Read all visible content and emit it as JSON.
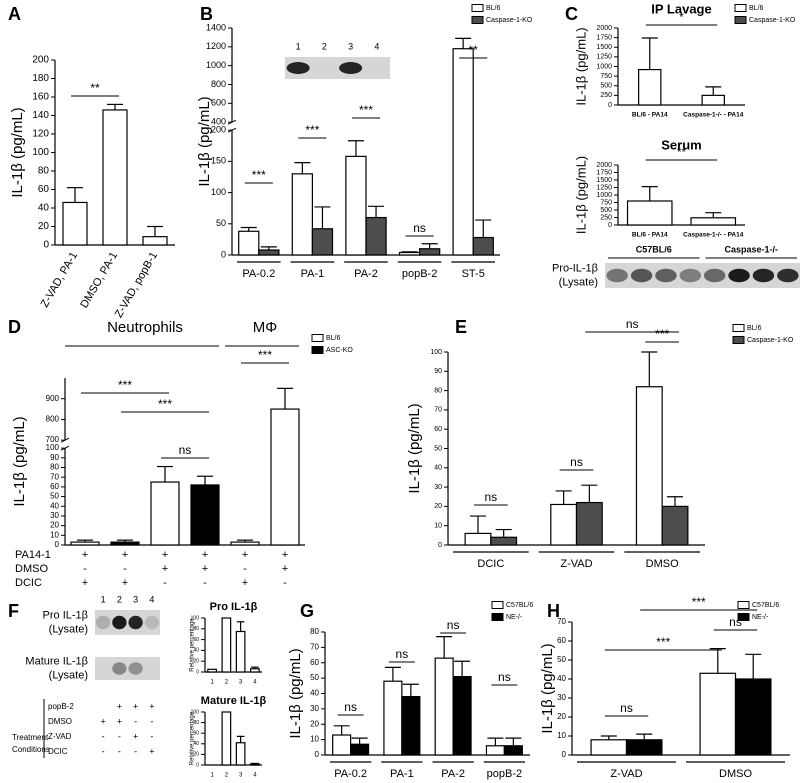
{
  "chart_data": [
    {
      "type": "bar",
      "panel": "A",
      "ylabel": "IL-1β (pg/mL)",
      "categories": [
        "Z-VAD, PA-1",
        "DMSO, PA-1",
        "Z-VAD, popB-1"
      ],
      "values": [
        46,
        146,
        9
      ],
      "errors": [
        16,
        6,
        11
      ],
      "color": "#ffffff",
      "ylim": [
        0,
        200
      ],
      "yticks": [
        0,
        20,
        40,
        60,
        80,
        100,
        120,
        140,
        160,
        180,
        200
      ],
      "annotations": [
        "**"
      ]
    },
    {
      "type": "bar",
      "panel": "B",
      "ylabel": "IL-1β (pg/mL)",
      "categories": [
        "PA-0.2",
        "PA-1",
        "PA-2",
        "popB-2",
        "ST-5"
      ],
      "series": [
        {
          "name": "BL/6",
          "color": "#ffffff",
          "values": [
            38,
            130,
            158,
            4,
            1180
          ],
          "errors": [
            6,
            18,
            25,
            1,
            110
          ]
        },
        {
          "name": "Caspase-1-KO",
          "color": "#4d4d4d",
          "values": [
            8,
            42,
            60,
            10,
            28
          ],
          "errors": [
            5,
            35,
            18,
            8,
            28
          ]
        }
      ],
      "ylim": [
        0,
        1400
      ],
      "axis_break": [
        200,
        400
      ],
      "yticks": [
        0,
        50,
        100,
        150,
        200,
        400,
        600,
        800,
        1000,
        1200,
        1400
      ],
      "annotations": [
        "***",
        "***",
        "***",
        "ns",
        "**"
      ]
    },
    {
      "type": "blot",
      "lanes": [
        "1",
        "2",
        "3",
        "4"
      ]
    },
    {
      "type": "bar",
      "panel": "C",
      "title": "IP Lavage",
      "ylabel": "IL-1β (pg/mL)",
      "categories": [
        "BL/6 - PA14",
        "Caspase-1-/- - PA14"
      ],
      "series": [
        {
          "name": "BL/6",
          "color": "#ffffff",
          "values": [
            920,
            250
          ],
          "errors": [
            820,
            220
          ]
        },
        {
          "name": "Caspase-1-KO",
          "color": "#4d4d4d",
          "values": [
            null,
            null
          ],
          "errors": [
            null,
            null
          ]
        }
      ],
      "ylim": [
        0,
        2000
      ],
      "yticks": [
        0,
        250,
        500,
        750,
        1000,
        1250,
        1500,
        1750,
        2000
      ],
      "annotations": [
        "*"
      ]
    },
    {
      "type": "bar",
      "title": "Serum",
      "ylabel": "IL-1β (pg/mL)",
      "categories": [
        "BL/6 - PA14",
        "Caspase-1-/- - PA14"
      ],
      "series": [
        {
          "color": "#ffffff",
          "values": [
            800,
            240
          ],
          "errors": [
            480,
            170
          ]
        }
      ],
      "ylim": [
        0,
        2000
      ],
      "yticks": [
        0,
        250,
        500,
        750,
        1000,
        1250,
        1500,
        1750,
        2000
      ],
      "annotations": [
        "**"
      ]
    },
    {
      "type": "blot",
      "groups": [
        "C57BL/6",
        "Caspase-1-/-"
      ],
      "rows": [
        [
          "Pro-IL-1β",
          "(Lysate)"
        ]
      ]
    },
    {
      "type": "bar",
      "panel": "D",
      "ylabel": "IL-1β (pg/mL)",
      "categories": [
        null,
        null,
        null,
        null,
        null,
        null
      ],
      "groups": [
        "Neutrophils",
        "MΦ"
      ],
      "series": [
        {
          "name": "BL/6",
          "color": "#ffffff",
          "values": [
            3,
            null,
            65,
            null,
            3,
            850
          ],
          "errors": [
            2,
            null,
            16,
            null,
            2,
            100
          ]
        },
        {
          "name": "ASC-KO",
          "color": "#000000",
          "values": [
            null,
            3,
            null,
            62,
            null,
            null
          ],
          "errors": [
            null,
            2,
            null,
            9,
            null,
            null
          ]
        }
      ],
      "ylim": [
        0,
        1000
      ],
      "axis_break": [
        100,
        700
      ],
      "yticks": [
        0,
        10,
        20,
        30,
        40,
        50,
        60,
        70,
        80,
        90,
        100,
        700,
        800,
        900
      ],
      "conditions": [
        {
          "name": "PA14-1",
          "marks": [
            "+",
            "+",
            "+",
            "+",
            "+",
            "+"
          ]
        },
        {
          "name": "DMSO",
          "marks": [
            "-",
            "-",
            "+",
            "+",
            "-",
            "+"
          ]
        },
        {
          "name": "DCIC",
          "marks": [
            "+",
            "+",
            "-",
            "-",
            "+",
            "-"
          ]
        }
      ],
      "annotations": [
        "***",
        "***",
        "ns",
        "***"
      ]
    },
    {
      "type": "bar",
      "panel": "E",
      "ylabel": "IL-1β (pg/mL)",
      "categories": [
        "DCIC",
        "Z-VAD",
        "DMSO"
      ],
      "series": [
        {
          "name": "BL/6",
          "color": "#ffffff",
          "values": [
            6,
            21,
            82
          ],
          "errors": [
            9,
            7,
            18
          ]
        },
        {
          "name": "Caspase-1-KO",
          "color": "#4d4d4d",
          "values": [
            4,
            22,
            20
          ],
          "errors": [
            4,
            9,
            5
          ]
        }
      ],
      "ylim": [
        0,
        100
      ],
      "yticks": [
        0,
        10,
        20,
        30,
        40,
        50,
        60,
        70,
        80,
        90,
        100
      ],
      "annotations": [
        "ns",
        "ns",
        "ns",
        "***"
      ]
    },
    {
      "type": "blot",
      "panel": "F",
      "lanes": [
        "1",
        "2",
        "3",
        "4"
      ],
      "rows": [
        [
          "Pro IL-1β",
          "(Lysate)"
        ],
        [
          "Mature IL-1β",
          "(Lysate)"
        ]
      ],
      "conditions_title": [
        "Treatment",
        "Conditions"
      ],
      "conditions": [
        {
          "name": "popB-2",
          "marks": [
            null,
            "+",
            "+",
            "+"
          ]
        },
        {
          "name": "DMSO",
          "marks": [
            "+",
            "+",
            "-",
            "-"
          ]
        },
        {
          "name": "Z-VAD",
          "marks": [
            "-",
            "-",
            "+",
            "-"
          ]
        },
        {
          "name": "DCIC",
          "marks": [
            "-",
            "-",
            "-",
            "+"
          ]
        }
      ]
    },
    {
      "type": "bar",
      "title": "Pro IL-1β",
      "ylabel": "Relative percentage",
      "categories": [
        "1",
        "2",
        "3",
        "4"
      ],
      "values": [
        5,
        100,
        75,
        6
      ],
      "errors": [
        null,
        null,
        18,
        3
      ],
      "color": "#ffffff",
      "ylim": [
        0,
        100
      ],
      "yticks": [
        0,
        20,
        40,
        60,
        80,
        100
      ]
    },
    {
      "type": "bar",
      "title": "Mature IL-1β",
      "ylabel": "Relative percentage",
      "categories": [
        "1",
        "2",
        "3",
        "4"
      ],
      "values": [
        0,
        100,
        42,
        2
      ],
      "errors": [
        null,
        null,
        12,
        1
      ],
      "color": "#ffffff",
      "ylim": [
        0,
        100
      ],
      "yticks": [
        0,
        20,
        40,
        60,
        80,
        100
      ]
    },
    {
      "type": "bar",
      "panel": "G",
      "ylabel": "IL-1β (pg/mL)",
      "categories": [
        "PA-0.2",
        "PA-1",
        "PA-2",
        "popB-2"
      ],
      "series": [
        {
          "name": "C57BL/6",
          "color": "#ffffff",
          "values": [
            13,
            48,
            63,
            6
          ],
          "errors": [
            6,
            9,
            14,
            5
          ]
        },
        {
          "name": "NE-/-",
          "color": "#000000",
          "values": [
            7,
            38,
            51,
            6
          ],
          "errors": [
            4,
            8,
            10,
            5
          ]
        }
      ],
      "ylim": [
        0,
        80
      ],
      "yticks": [
        0,
        10,
        20,
        30,
        40,
        50,
        60,
        70,
        80
      ],
      "annotations": [
        "ns",
        "ns",
        "ns",
        "ns"
      ]
    },
    {
      "type": "bar",
      "panel": "H",
      "ylabel": "IL-1β (pg/mL)",
      "categories": [
        "Z-VAD",
        "DMSO"
      ],
      "series": [
        {
          "name": "C57BL/6",
          "color": "#ffffff",
          "values": [
            8,
            43
          ],
          "errors": [
            2,
            13
          ]
        },
        {
          "name": "NE-/-",
          "color": "#000000",
          "values": [
            8,
            40
          ],
          "errors": [
            3,
            13
          ]
        }
      ],
      "ylim": [
        0,
        70
      ],
      "yticks": [
        0,
        10,
        20,
        30,
        40,
        50,
        60,
        70
      ],
      "annotations": [
        "ns",
        "***",
        "ns",
        "***"
      ]
    }
  ]
}
